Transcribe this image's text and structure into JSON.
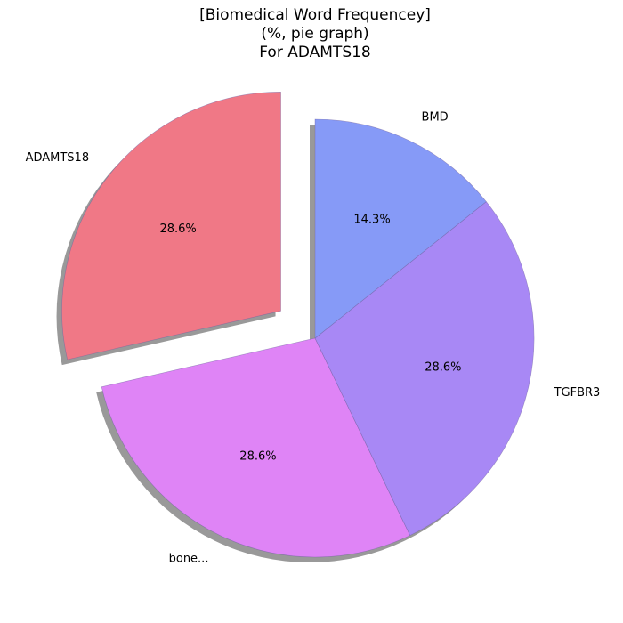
{
  "chart_data": {
    "type": "pie",
    "title_lines": [
      "[Biomedical Word Frequencey]",
      "(%, pie graph)",
      "For ADAMTS18"
    ],
    "slices": [
      {
        "label": "ADAMTS18",
        "value": 28.6,
        "pct_label": "28.6%",
        "color": "#f07886",
        "exploded": true
      },
      {
        "label": "bone...",
        "value": 28.6,
        "pct_label": "28.6%",
        "color": "#df84f6",
        "exploded": false
      },
      {
        "label": "TGFBR3",
        "value": 28.6,
        "pct_label": "28.6%",
        "color": "#a888f5",
        "exploded": false
      },
      {
        "label": "BMD",
        "value": 14.3,
        "pct_label": "14.3%",
        "color": "#869af7",
        "exploded": false
      }
    ],
    "start_angle_deg": 90,
    "direction": "counterclockwise",
    "shadow": true,
    "legend": "none"
  }
}
